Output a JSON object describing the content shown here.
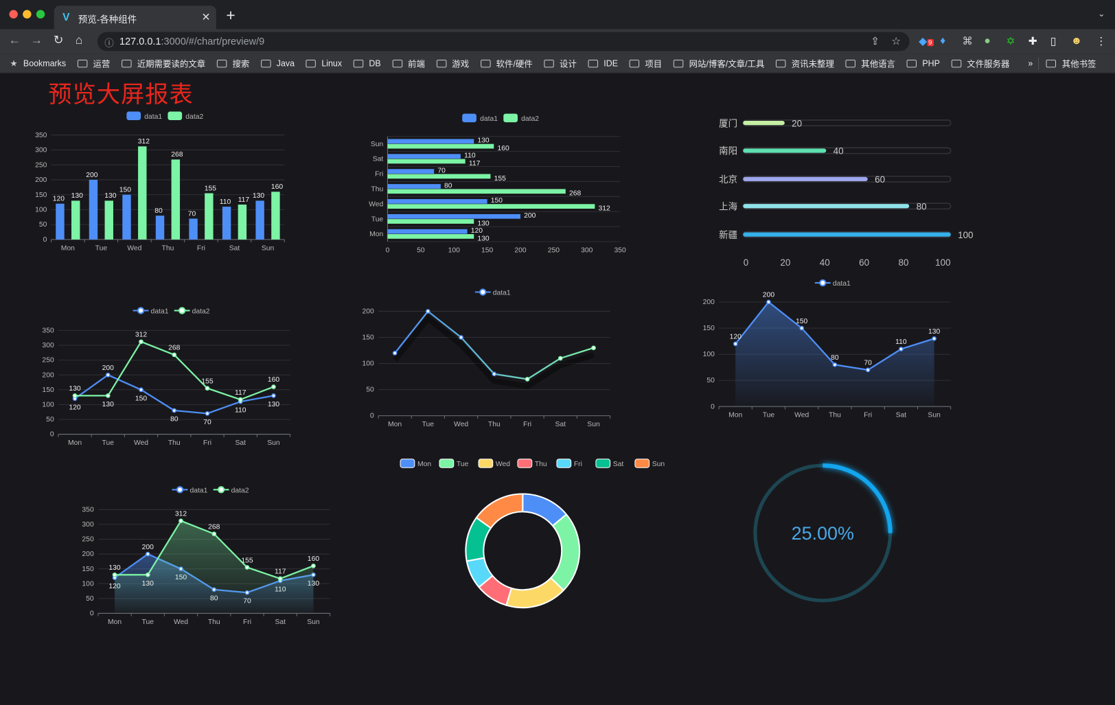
{
  "browser": {
    "tab_title": "预览-各种组件",
    "url_host": "127.0.0.1",
    "url_rest": ":3000/#/chart/preview/9",
    "extension_badge": "9",
    "bookmarks": [
      "运营",
      "近期需要读的文章",
      "搜索",
      "Java",
      "Linux",
      "DB",
      "前端",
      "游戏",
      "软件/硬件",
      "设计",
      "IDE",
      "项目",
      "网站/博客/文章/工具",
      "资讯未整理",
      "其他语言",
      "PHP",
      "文件服务器"
    ],
    "bookmarks_label": "Bookmarks",
    "more": "»",
    "other_bookmarks": "其他书签"
  },
  "page": {
    "title": "预览大屏报表",
    "title_color": "#e8261c"
  },
  "colors": {
    "data1": "#4e8ef7",
    "data2": "#7cf3a5",
    "bg": "#18181c"
  },
  "chart_data": [
    {
      "type": "bar",
      "legend": [
        "data1",
        "data2"
      ],
      "categories": [
        "Mon",
        "Tue",
        "Wed",
        "Thu",
        "Fri",
        "Sat",
        "Sun"
      ],
      "series": [
        {
          "name": "data1",
          "values": [
            120,
            200,
            150,
            80,
            70,
            110,
            130
          ]
        },
        {
          "name": "data2",
          "values": [
            130,
            130,
            312,
            268,
            155,
            117,
            160
          ]
        }
      ],
      "ylim": [
        0,
        350
      ],
      "grid": true,
      "legend_position": "top"
    },
    {
      "type": "bar",
      "orientation": "horizontal",
      "legend": [
        "data1",
        "data2"
      ],
      "categories": [
        "Mon",
        "Tue",
        "Wed",
        "Thu",
        "Fri",
        "Sat",
        "Sun"
      ],
      "series": [
        {
          "name": "data1",
          "values": [
            120,
            200,
            150,
            80,
            70,
            110,
            130
          ]
        },
        {
          "name": "data2",
          "values": [
            130,
            130,
            312,
            268,
            155,
            117,
            160
          ]
        }
      ],
      "xlim": [
        0,
        350
      ],
      "grid": true,
      "legend_position": "top"
    },
    {
      "type": "bar",
      "orientation": "horizontal",
      "style": "progress",
      "categories": [
        "厦门",
        "南阳",
        "北京",
        "上海",
        "新疆"
      ],
      "values": [
        20,
        40,
        60,
        80,
        100
      ],
      "colors": [
        "#c5f0a4",
        "#5fe0b0",
        "#9ea6ec",
        "#8fe3ea",
        "#35b0e8"
      ],
      "xlim": [
        0,
        100
      ]
    },
    {
      "type": "line",
      "legend": [
        "data1",
        "data2"
      ],
      "categories": [
        "Mon",
        "Tue",
        "Wed",
        "Thu",
        "Fri",
        "Sat",
        "Sun"
      ],
      "series": [
        {
          "name": "data1",
          "values": [
            120,
            200,
            150,
            80,
            70,
            110,
            130
          ]
        },
        {
          "name": "data2",
          "values": [
            130,
            130,
            312,
            268,
            155,
            117,
            160
          ]
        }
      ],
      "ylim": [
        0,
        350
      ],
      "grid": true,
      "legend_position": "top"
    },
    {
      "type": "line",
      "legend": [
        "data1"
      ],
      "categories": [
        "Mon",
        "Tue",
        "Wed",
        "Thu",
        "Fri",
        "Sat",
        "Sun"
      ],
      "series": [
        {
          "name": "data1",
          "values": [
            120,
            200,
            150,
            80,
            70,
            110,
            130
          ]
        }
      ],
      "ylim": [
        0,
        200
      ],
      "grid": true,
      "legend_position": "top"
    },
    {
      "type": "area",
      "legend": [
        "data1"
      ],
      "categories": [
        "Mon",
        "Tue",
        "Wed",
        "Thu",
        "Fri",
        "Sat",
        "Sun"
      ],
      "series": [
        {
          "name": "data1",
          "values": [
            120,
            200,
            150,
            80,
            70,
            110,
            130
          ]
        }
      ],
      "ylim": [
        0,
        200
      ],
      "grid": true,
      "legend_position": "top"
    },
    {
      "type": "area",
      "legend": [
        "data1",
        "data2"
      ],
      "categories": [
        "Mon",
        "Tue",
        "Wed",
        "Thu",
        "Fri",
        "Sat",
        "Sun"
      ],
      "series": [
        {
          "name": "data1",
          "values": [
            120,
            200,
            150,
            80,
            70,
            110,
            130
          ]
        },
        {
          "name": "data2",
          "values": [
            130,
            130,
            312,
            268,
            155,
            117,
            160
          ]
        }
      ],
      "ylim": [
        0,
        350
      ],
      "grid": true,
      "legend_position": "top"
    },
    {
      "type": "pie",
      "style": "donut",
      "categories": [
        "Mon",
        "Tue",
        "Wed",
        "Thu",
        "Fri",
        "Sat",
        "Sun"
      ],
      "values": [
        120,
        200,
        150,
        80,
        70,
        110,
        130
      ],
      "colors": [
        "#4e8ef7",
        "#7cf3a5",
        "#fcd966",
        "#ff6e76",
        "#58d9f9",
        "#05c091",
        "#ff8a45"
      ],
      "legend_position": "top"
    },
    {
      "type": "gauge",
      "style": "ring",
      "value": 25,
      "label": "25.00%",
      "colors": {
        "track": "#1d4652",
        "progress": "#13a5ee",
        "text": "#4aa8e8"
      }
    }
  ]
}
